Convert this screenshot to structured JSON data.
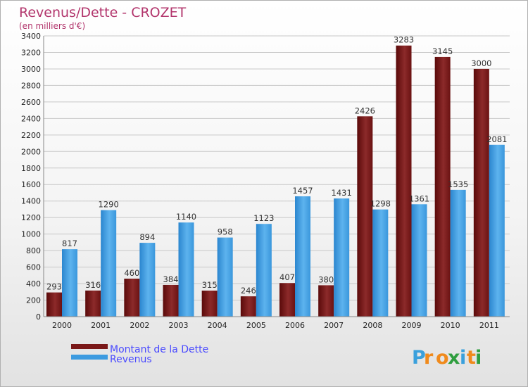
{
  "chart_data": {
    "type": "bar",
    "title": "Revenus/Dette - CROZET",
    "subtitle": "(en milliers d'€)",
    "categories": [
      "2000",
      "2001",
      "2002",
      "2003",
      "2004",
      "2005",
      "2006",
      "2007",
      "2008",
      "2009",
      "2010",
      "2011"
    ],
    "series": [
      {
        "name": "Montant de la Dette",
        "color": "#7a1818",
        "values": [
          293,
          316,
          460,
          384,
          315,
          246,
          407,
          380,
          2426,
          3283,
          3145,
          3000
        ]
      },
      {
        "name": "Revenus",
        "color": "#3d9be0",
        "values": [
          817,
          1290,
          894,
          1140,
          958,
          1123,
          1457,
          1431,
          1298,
          1361,
          1535,
          2081
        ]
      }
    ],
    "ylim": [
      0,
      3400
    ],
    "yticks": [
      0,
      200,
      400,
      600,
      800,
      1000,
      1200,
      1400,
      1600,
      1800,
      2000,
      2200,
      2400,
      2600,
      2800,
      3000,
      3200,
      3400
    ],
    "grid": true,
    "legend": "bottom-left"
  },
  "brand": {
    "logo_text": "Proxiti",
    "letters": [
      {
        "char": "P",
        "color": "#3aa0dc"
      },
      {
        "char": "r",
        "color": "#f08a1c"
      },
      {
        "char": "o",
        "color": "#f08a1c"
      },
      {
        "char": "x",
        "color": "#2f9e3f"
      },
      {
        "char": "i",
        "color": "#3aa0dc"
      },
      {
        "char": "t",
        "color": "#f08a1c"
      },
      {
        "char": "i",
        "color": "#2f9e3f"
      }
    ]
  }
}
